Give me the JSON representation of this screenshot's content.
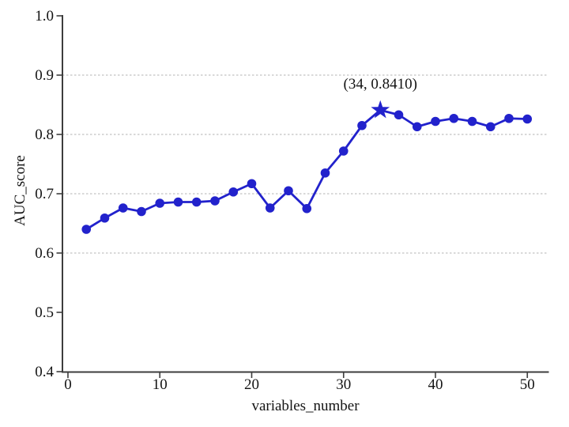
{
  "figure": {
    "background": "#ffffff"
  },
  "chart_data": {
    "type": "line",
    "xlabel": "variables_number",
    "ylabel": "AUC_score",
    "x": [
      2,
      4,
      6,
      8,
      10,
      12,
      14,
      16,
      18,
      20,
      22,
      24,
      26,
      28,
      30,
      32,
      34,
      36,
      38,
      40,
      42,
      44,
      46,
      48,
      50
    ],
    "y": [
      0.64,
      0.659,
      0.676,
      0.67,
      0.684,
      0.686,
      0.686,
      0.688,
      0.703,
      0.717,
      0.676,
      0.705,
      0.675,
      0.735,
      0.772,
      0.815,
      0.841,
      0.833,
      0.813,
      0.822,
      0.827,
      0.822,
      0.813,
      0.827,
      0.826
    ],
    "xlim": [
      -0.6,
      52.3
    ],
    "ylim": [
      0.4,
      1.0
    ],
    "xticks": [
      0,
      10,
      20,
      30,
      40,
      50
    ],
    "xtick_labels": [
      "0",
      "10",
      "20",
      "30",
      "40",
      "50"
    ],
    "yticks": [
      0.4,
      0.5,
      0.6,
      0.7,
      0.8,
      0.9,
      1.0
    ],
    "ytick_labels": [
      "0.4",
      "0.5",
      "0.6",
      "0.7",
      "0.8",
      "0.9",
      "1.0"
    ],
    "gridlines_y": [
      0.6,
      0.7,
      0.8,
      0.9
    ],
    "grid_style": "dashed",
    "legend": "none",
    "best_point": {
      "x": 34,
      "y": 0.841,
      "marker": "star"
    },
    "annotation": {
      "text": "(34, 0.8410)",
      "at_x": 34,
      "at_y": 0.841
    },
    "marker": "circle",
    "line_color": "#2222CC",
    "grid_color": "#B3B3B3",
    "axis_color": "#3D3D3D",
    "text_color": "#141414"
  }
}
